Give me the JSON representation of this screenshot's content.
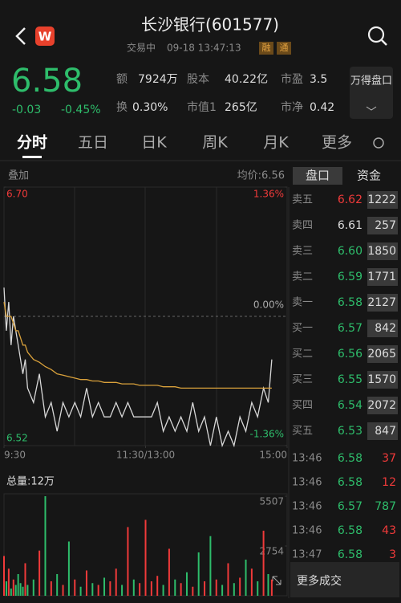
{
  "header": {
    "title": "长沙银行(601577)",
    "status": "交易中",
    "time": "09-18 13:47:13",
    "tags": [
      "融",
      "通"
    ]
  },
  "quote": {
    "price": "6.58",
    "change": "-0.03",
    "change_pct": "-0.45%",
    "stats": [
      {
        "label": "额",
        "value": "7924万"
      },
      {
        "label": "股本",
        "value": "40.22亿"
      },
      {
        "label": "市盈",
        "value": "3.5"
      },
      {
        "label": "换",
        "value": "0.30%"
      },
      {
        "label": "市值1",
        "value": "265亿"
      },
      {
        "label": "市净",
        "value": "0.42"
      }
    ],
    "button": "万得盘口"
  },
  "tabs": [
    "分时",
    "五日",
    "日K",
    "周K",
    "月K",
    "更多"
  ],
  "chart_data": [
    {
      "type": "line",
      "overlay_label": "叠加",
      "avg_label": "均价:6.56",
      "x": [
        0,
        2,
        4,
        6,
        8,
        10,
        12,
        14,
        16,
        18,
        20,
        25,
        30,
        35,
        40,
        45,
        50,
        55,
        60,
        65,
        70,
        75,
        80,
        85,
        90,
        95,
        100,
        105,
        110,
        115,
        120,
        125,
        130,
        135,
        140,
        145,
        150,
        155,
        160,
        165,
        170,
        175,
        180,
        185,
        190,
        195,
        200,
        205,
        210,
        215,
        220,
        224,
        227
      ],
      "series": [
        {
          "name": "price",
          "color": "#d8d8d8",
          "values": [
            6.63,
            6.6,
            6.62,
            6.59,
            6.61,
            6.6,
            6.59,
            6.58,
            6.57,
            6.58,
            6.56,
            6.55,
            6.57,
            6.54,
            6.55,
            6.53,
            6.55,
            6.54,
            6.55,
            6.54,
            6.56,
            6.54,
            6.55,
            6.54,
            6.54,
            6.55,
            6.54,
            6.55,
            6.54,
            6.54,
            6.54,
            6.54,
            6.55,
            6.53,
            6.54,
            6.53,
            6.54,
            6.53,
            6.55,
            6.53,
            6.54,
            6.52,
            6.54,
            6.52,
            6.53,
            6.52,
            6.54,
            6.53,
            6.55,
            6.54,
            6.56,
            6.55,
            6.58
          ]
        },
        {
          "name": "avg",
          "color": "#d9a13b",
          "values": [
            6.62,
            6.61,
            6.61,
            6.61,
            6.605,
            6.6,
            6.6,
            6.595,
            6.59,
            6.59,
            6.585,
            6.58,
            6.578,
            6.575,
            6.573,
            6.57,
            6.569,
            6.568,
            6.567,
            6.566,
            6.566,
            6.565,
            6.565,
            6.564,
            6.564,
            6.564,
            6.563,
            6.563,
            6.563,
            6.562,
            6.562,
            6.562,
            6.562,
            6.561,
            6.561,
            6.561,
            6.56,
            6.56,
            6.56,
            6.56,
            6.56,
            6.56,
            6.56,
            6.56,
            6.56,
            6.56,
            6.56,
            6.56,
            6.56,
            6.56,
            6.56,
            6.56,
            6.56
          ]
        }
      ],
      "xlim": [
        0,
        240
      ],
      "xticks": [
        {
          "value": 0,
          "label": "9:30"
        },
        {
          "value": 120,
          "label": "11:30/13:00"
        },
        {
          "value": 240,
          "label": "15:00"
        }
      ],
      "ylim": [
        6.52,
        6.7
      ],
      "yticks": [
        {
          "value": 6.7,
          "label": "6.70"
        },
        {
          "value": 6.52,
          "label": "6.52"
        }
      ],
      "y2lim": [
        -1.36,
        1.36
      ],
      "y2ticks": [
        {
          "value": 1.36,
          "label": "1.36%"
        },
        {
          "value": 0,
          "label": "0.00%"
        },
        {
          "value": -1.36,
          "label": "-1.36%"
        }
      ]
    },
    {
      "type": "bar",
      "title": "总量:12万",
      "x": [
        0,
        2,
        4,
        6,
        8,
        10,
        12,
        14,
        16,
        18,
        20,
        25,
        30,
        35,
        40,
        45,
        50,
        55,
        60,
        65,
        70,
        75,
        80,
        85,
        90,
        95,
        100,
        105,
        110,
        115,
        120,
        125,
        130,
        135,
        140,
        145,
        150,
        155,
        160,
        165,
        170,
        175,
        180,
        185,
        190,
        195,
        200,
        205,
        210,
        215,
        220,
        224,
        227
      ],
      "values": [
        2200,
        800,
        1500,
        400,
        900,
        600,
        1200,
        700,
        500,
        1800,
        600,
        900,
        2500,
        5507,
        800,
        1200,
        600,
        3000,
        900,
        500,
        1400,
        700,
        600,
        1000,
        800,
        1500,
        600,
        3800,
        900,
        700,
        4200,
        800,
        1100,
        600,
        2600,
        900,
        700,
        1300,
        500,
        2400,
        800,
        3300,
        900,
        600,
        1800,
        700,
        1000,
        2000,
        1500,
        800,
        3600,
        1200,
        900
      ],
      "xlim": [
        0,
        240
      ],
      "ylim": [
        0,
        5507
      ],
      "yticks": [
        5507,
        2754
      ]
    }
  ],
  "order_book": {
    "tabs": [
      "盘口",
      "资金"
    ],
    "asks": [
      {
        "label": "卖五",
        "price": "6.62",
        "volume": "1222"
      },
      {
        "label": "卖四",
        "price": "6.61",
        "volume": "257"
      },
      {
        "label": "卖三",
        "price": "6.60",
        "volume": "1850"
      },
      {
        "label": "卖二",
        "price": "6.59",
        "volume": "1771"
      },
      {
        "label": "卖一",
        "price": "6.58",
        "volume": "2127"
      }
    ],
    "bids": [
      {
        "label": "买一",
        "price": "6.57",
        "volume": "842"
      },
      {
        "label": "买二",
        "price": "6.56",
        "volume": "2065"
      },
      {
        "label": "买三",
        "price": "6.55",
        "volume": "1570"
      },
      {
        "label": "买四",
        "price": "6.54",
        "volume": "2072"
      },
      {
        "label": "买五",
        "price": "6.53",
        "volume": "847"
      }
    ]
  },
  "trades": [
    {
      "time": "13:46",
      "price": "6.58",
      "volume": "37",
      "color": "#f03a3a"
    },
    {
      "time": "13:46",
      "price": "6.58",
      "volume": "12",
      "color": "#f03a3a"
    },
    {
      "time": "13:46",
      "price": "6.57",
      "volume": "787",
      "color": "#2ebd6b"
    },
    {
      "time": "13:46",
      "price": "6.58",
      "volume": "43",
      "color": "#f03a3a"
    },
    {
      "time": "13:47",
      "price": "6.58",
      "volume": "3",
      "color": "#f03a3a"
    }
  ],
  "more_trades": "更多成交"
}
